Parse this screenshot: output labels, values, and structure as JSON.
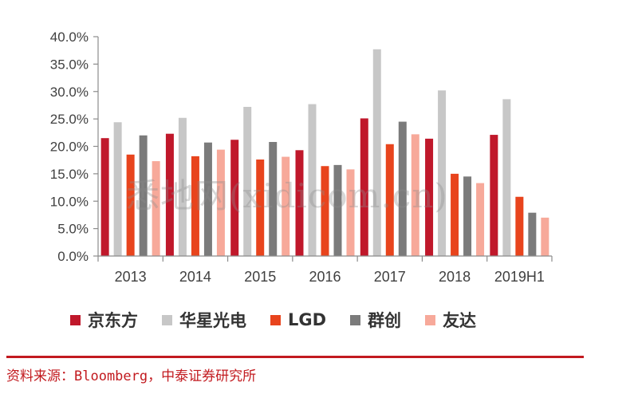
{
  "colors": {
    "series": [
      "#c0182b",
      "#c7c7c7",
      "#e8441d",
      "#7b7b7b",
      "#f7a99a"
    ],
    "axis": "#8c8c8c",
    "source_text": "#c21a1f"
  },
  "chart_data": {
    "type": "bar",
    "categories": [
      "2013",
      "2014",
      "2015",
      "2016",
      "2017",
      "2018",
      "2019H1"
    ],
    "ylim": [
      0,
      40
    ],
    "yticks": [
      "0.0%",
      "5.0%",
      "10.0%",
      "15.0%",
      "20.0%",
      "25.0%",
      "30.0%",
      "35.0%",
      "40.0%"
    ],
    "grid": false,
    "legend_position": "bottom",
    "series": [
      {
        "name": "京东方",
        "values": [
          21.5,
          22.3,
          21.2,
          19.3,
          25.1,
          21.4,
          22.1
        ]
      },
      {
        "name": "华星光电",
        "values": [
          24.4,
          25.2,
          27.2,
          27.7,
          37.7,
          30.2,
          28.6
        ]
      },
      {
        "name": "LGD",
        "values": [
          18.5,
          18.2,
          17.6,
          16.4,
          20.4,
          15.0,
          10.8
        ]
      },
      {
        "name": "群创",
        "values": [
          22.0,
          20.7,
          20.8,
          16.6,
          24.5,
          14.5,
          7.9
        ]
      },
      {
        "name": "友达",
        "values": [
          17.3,
          19.4,
          18.1,
          15.8,
          22.2,
          13.3,
          7.0
        ]
      }
    ]
  },
  "source": "资料来源：Bloomberg，中泰证券研究所",
  "watermark": "悉地网(xidicom.cn)"
}
